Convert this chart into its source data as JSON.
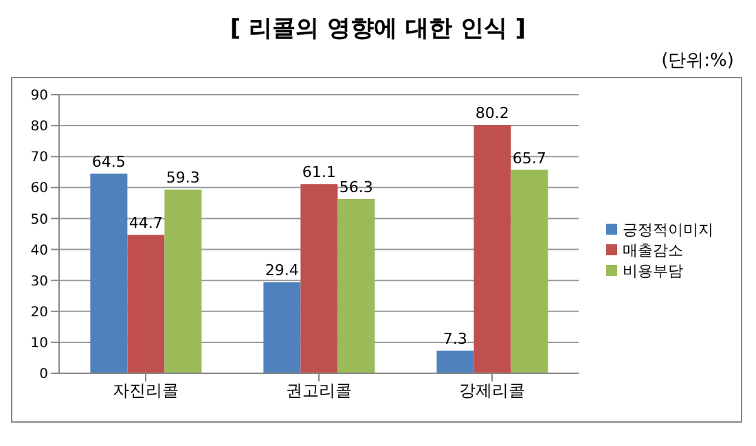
{
  "chart_data": {
    "type": "bar",
    "title": "[ 리콜의 영향에 대한 인식 ]",
    "subtitle": "(단위:%)",
    "categories": [
      "자진리콜",
      "권고리콜",
      "강제리콜"
    ],
    "series": [
      {
        "name": "긍정적이미지",
        "color": "#4f81bd",
        "values": [
          64.5,
          29.4,
          7.3
        ]
      },
      {
        "name": "매출감소",
        "color": "#c0504d",
        "values": [
          44.7,
          61.1,
          80.2
        ]
      },
      {
        "name": "비용부담",
        "color": "#9bbb59",
        "values": [
          59.3,
          56.3,
          65.7
        ]
      }
    ],
    "ylim": [
      0,
      90
    ],
    "yticks": [
      0,
      10,
      20,
      30,
      40,
      50,
      60,
      70,
      80,
      90
    ],
    "grid": "y",
    "legend": "right",
    "data_labels": true
  }
}
